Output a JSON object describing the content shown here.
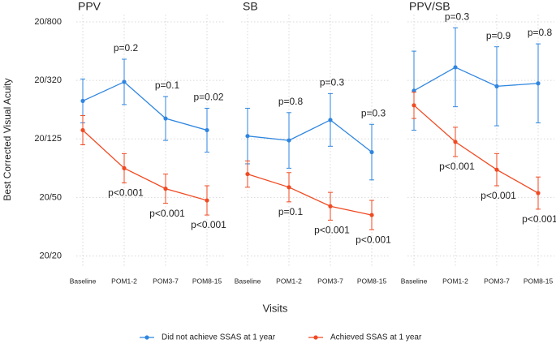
{
  "ylabel": "Best Corrected Visual Acuity",
  "xlabel": "Visits",
  "chart_data": [
    {
      "type": "line",
      "title": "PPV",
      "categories": [
        "Baseline",
        "POM1-2",
        "POM3-7",
        "POM8-15"
      ],
      "ylim": [
        -0.08,
        1.65
      ],
      "yticks": [
        {
          "value": 1.6,
          "label": "20/800"
        },
        {
          "value": 1.2,
          "label": "20/320"
        },
        {
          "value": 0.8,
          "label": "20/125"
        },
        {
          "value": 0.4,
          "label": "20/50"
        },
        {
          "value": 0,
          "label": "20/20"
        }
      ],
      "grid": true,
      "series": [
        {
          "name": "Did not achieve SSAS at 1 year",
          "color": "#2f86e0",
          "values": [
            1.06,
            1.19,
            0.94,
            0.86
          ],
          "errors": [
            0.15,
            0.155,
            0.15,
            0.15
          ],
          "p_labels": [
            null,
            "p=0.2",
            "p=0.1",
            "p=0.02"
          ]
        },
        {
          "name": "Achieved SSAS at 1 year",
          "color": "#f04a22",
          "values": [
            0.86,
            0.6,
            0.46,
            0.38
          ],
          "errors": [
            0.1,
            0.1,
            0.1,
            0.1
          ],
          "p_labels": [
            null,
            "p<0.001",
            "p<0.001",
            "p<0.001"
          ]
        }
      ]
    },
    {
      "type": "line",
      "title": "SB",
      "categories": [
        "Baseline",
        "POM1-2",
        "POM3-7",
        "POM8-15"
      ],
      "ylim": [
        -0.08,
        1.65
      ],
      "yticks": [
        {
          "value": 1.6,
          "label": "20/800"
        },
        {
          "value": 1.2,
          "label": "20/320"
        },
        {
          "value": 0.8,
          "label": "20/125"
        },
        {
          "value": 0.4,
          "label": "20/50"
        },
        {
          "value": 0,
          "label": "20/20"
        }
      ],
      "grid": true,
      "series": [
        {
          "name": "Did not achieve SSAS at 1 year",
          "color": "#2f86e0",
          "values": [
            0.82,
            0.79,
            0.93,
            0.71
          ],
          "errors": [
            0.19,
            0.19,
            0.18,
            0.19
          ],
          "p_labels": [
            null,
            "p=0.8",
            "p=0.3",
            "p=0.3"
          ]
        },
        {
          "name": "Achieved SSAS at 1 year",
          "color": "#f04a22",
          "values": [
            0.56,
            0.47,
            0.34,
            0.28
          ],
          "errors": [
            0.09,
            0.1,
            0.095,
            0.1
          ],
          "p_labels": [
            null,
            "p=0.1",
            "p<0.001",
            "p<0.001"
          ]
        }
      ]
    },
    {
      "type": "line",
      "title": "PPV/SB",
      "categories": [
        "Baseline",
        "POM1-2",
        "POM3-7",
        "POM8-15"
      ],
      "ylim": [
        -0.08,
        1.65
      ],
      "yticks": [
        {
          "value": 1.6,
          "label": "20/800"
        },
        {
          "value": 1.2,
          "label": "20/320"
        },
        {
          "value": 0.8,
          "label": "20/125"
        },
        {
          "value": 0.4,
          "label": "20/50"
        },
        {
          "value": 0,
          "label": "20/20"
        }
      ],
      "grid": true,
      "series": [
        {
          "name": "Did not achieve SSAS at 1 year",
          "color": "#2f86e0",
          "values": [
            1.13,
            1.29,
            1.16,
            1.18
          ],
          "errors": [
            0.27,
            0.27,
            0.27,
            0.27
          ],
          "p_labels": [
            null,
            "p=0.3",
            "p=0.9",
            "p=0.8"
          ]
        },
        {
          "name": "Achieved SSAS at 1 year",
          "color": "#f04a22",
          "values": [
            1.03,
            0.78,
            0.59,
            0.43
          ],
          "errors": [
            0.09,
            0.1,
            0.11,
            0.11
          ],
          "p_labels": [
            null,
            "p<0.001",
            "p<0.001",
            "p<0.001"
          ]
        }
      ]
    }
  ]
}
